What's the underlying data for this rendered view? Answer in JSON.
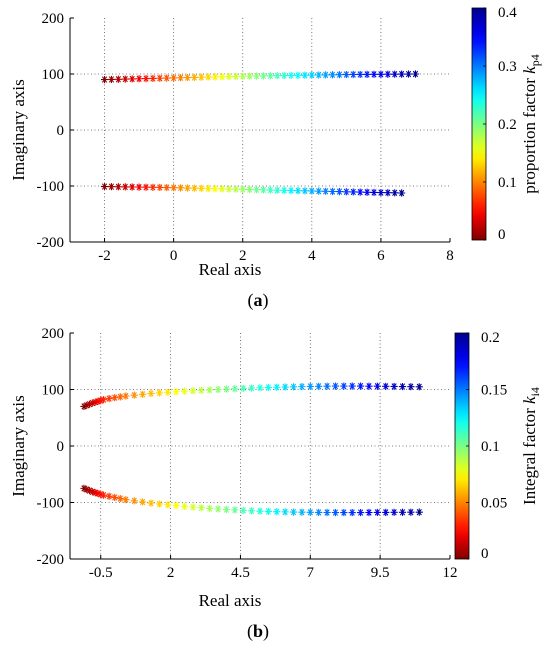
{
  "chart_data": [
    {
      "type": "scatter",
      "panel_label": "(a)",
      "panel_letter": "a",
      "xlabel": "Real axis",
      "ylabel": "Imaginary axis",
      "xlim": [
        -3,
        8
      ],
      "ylim": [
        -200,
        200
      ],
      "xticks": [
        -2,
        0,
        2,
        4,
        6,
        8
      ],
      "yticks": [
        -200,
        -100,
        0,
        100,
        200
      ],
      "grid": "dotted",
      "marker": "*",
      "series": [
        {
          "values": {
            "x": [
              -2.0,
              -1.8,
              -1.6,
              -1.4,
              -1.2,
              -1.0,
              -0.8,
              -0.6,
              -0.4,
              -0.2,
              0.0,
              0.2,
              0.4,
              0.6,
              0.8,
              1.0,
              1.2,
              1.4,
              1.6,
              1.8,
              2.0,
              2.2,
              2.4,
              2.6,
              2.8,
              3.0,
              3.2,
              3.4,
              3.6,
              3.8,
              4.0,
              4.2,
              4.4,
              4.6,
              4.8,
              5.0,
              5.2,
              5.4,
              5.6,
              5.8,
              6.0,
              6.2,
              6.4,
              6.6,
              6.8,
              7.0
            ],
            "y": [
              90,
              90.3,
              90.6,
              90.9,
              91.2,
              91.5,
              91.8,
              92.1,
              92.4,
              92.7,
              93,
              93.3,
              93.6,
              93.9,
              94.2,
              94.5,
              94.8,
              95.1,
              95.4,
              95.7,
              96,
              96.2,
              96.4,
              96.6,
              96.8,
              97,
              97.2,
              97.4,
              97.6,
              97.8,
              98,
              98.2,
              98.4,
              98.6,
              98.8,
              99,
              99.1,
              99.2,
              99.3,
              99.4,
              99.5,
              99.6,
              99.7,
              99.8,
              99.9,
              100
            ]
          }
        },
        {
          "values": {
            "x": [
              -2.0,
              -1.8,
              -1.6,
              -1.4,
              -1.2,
              -1.0,
              -0.8,
              -0.6,
              -0.4,
              -0.2,
              0.0,
              0.2,
              0.4,
              0.6,
              0.8,
              1.0,
              1.2,
              1.4,
              1.6,
              1.8,
              2.0,
              2.2,
              2.4,
              2.6,
              2.8,
              3.0,
              3.2,
              3.4,
              3.6,
              3.8,
              4.0,
              4.2,
              4.4,
              4.6,
              4.8,
              5.0,
              5.2,
              5.4,
              5.6,
              5.8,
              6.0,
              6.2,
              6.4,
              6.6
            ],
            "y": [
              -101,
              -101.2,
              -101.4,
              -101.6,
              -101.8,
              -102,
              -102.2,
              -102.4,
              -102.6,
              -102.8,
              -103,
              -103.3,
              -103.6,
              -103.9,
              -104.2,
              -104.5,
              -104.8,
              -105.1,
              -105.4,
              -105.7,
              -106,
              -106.3,
              -106.6,
              -106.9,
              -107.2,
              -107.5,
              -107.8,
              -108,
              -108.3,
              -108.6,
              -108.9,
              -109.2,
              -109.5,
              -109.8,
              -110,
              -110.3,
              -110.6,
              -110.9,
              -111.2,
              -111.5,
              -111.8,
              -112,
              -112.2,
              -112.5
            ]
          }
        }
      ],
      "colorbar": {
        "label_prefix": "proportion factor",
        "symbol": "k",
        "subscript": "p4",
        "range": [
          0,
          0.4
        ],
        "ticks": [
          0,
          0.1,
          0.2,
          0.3,
          0.4
        ],
        "colormap": "jet"
      }
    },
    {
      "type": "scatter",
      "panel_label": "(b)",
      "panel_letter": "b",
      "xlabel": "Real axis",
      "ylabel": "Imaginary axis",
      "xlim": [
        -1.6,
        12
      ],
      "ylim": [
        -200,
        200
      ],
      "xticks": [
        -0.5,
        2,
        4.5,
        7,
        9.5,
        12
      ],
      "yticks": [
        -200,
        -100,
        0,
        100,
        200
      ],
      "grid": "dotted",
      "marker": "*",
      "series": [
        {
          "values": {
            "x": [
              -1.1,
              -1.0,
              -0.9,
              -0.8,
              -0.7,
              -0.6,
              -0.5,
              -0.4,
              -0.2,
              0.0,
              0.2,
              0.4,
              0.7,
              1.0,
              1.3,
              1.6,
              1.9,
              2.2,
              2.5,
              2.8,
              3.1,
              3.4,
              3.7,
              4.0,
              4.3,
              4.6,
              4.9,
              5.2,
              5.5,
              5.8,
              6.1,
              6.4,
              6.7,
              7.0,
              7.3,
              7.6,
              7.9,
              8.2,
              8.5,
              8.8,
              9.1,
              9.4,
              9.7,
              10.0,
              10.3,
              10.6,
              10.9
            ],
            "y": [
              70,
              72,
              74,
              76,
              77.5,
              79,
              80.5,
              82,
              84,
              85.5,
              87,
              88.5,
              90,
              91.5,
              93,
              94,
              95,
              96,
              97,
              97.8,
              98.5,
              99.3,
              100,
              100.7,
              101.3,
              102,
              102.5,
              103,
              103.5,
              104,
              104.4,
              104.8,
              105.1,
              105.4,
              105.6,
              105.8,
              106,
              106,
              106,
              106,
              105.9,
              105.8,
              105.6,
              105.4,
              105.2,
              105,
              104.8
            ]
          }
        },
        {
          "values": {
            "x": [
              -1.1,
              -1.0,
              -0.9,
              -0.8,
              -0.7,
              -0.6,
              -0.5,
              -0.4,
              -0.2,
              0.0,
              0.2,
              0.4,
              0.7,
              1.0,
              1.3,
              1.6,
              1.9,
              2.2,
              2.5,
              2.8,
              3.1,
              3.4,
              3.7,
              4.0,
              4.3,
              4.6,
              4.9,
              5.2,
              5.5,
              5.8,
              6.1,
              6.4,
              6.7,
              7.0,
              7.3,
              7.6,
              7.9,
              8.2,
              8.5,
              8.8,
              9.1,
              9.4,
              9.7,
              10.0,
              10.3,
              10.6,
              10.9
            ],
            "y": [
              -75,
              -77,
              -79,
              -81,
              -82.5,
              -84,
              -85.5,
              -87,
              -89,
              -91,
              -93,
              -95,
              -97,
              -99,
              -101,
              -102.5,
              -104,
              -105.5,
              -107,
              -108.2,
              -109.4,
              -110.5,
              -111.5,
              -112.4,
              -113.2,
              -114,
              -114.7,
              -115.3,
              -115.8,
              -116.2,
              -116.6,
              -117,
              -117.2,
              -117.4,
              -117.6,
              -117.7,
              -117.8,
              -117.8,
              -117.8,
              -117.8,
              -117.7,
              -117.6,
              -117.5,
              -117.4,
              -117.3,
              -117.2,
              -117.1
            ]
          }
        }
      ],
      "colorbar": {
        "label_prefix": "Integral factor",
        "symbol": "k",
        "subscript": "i4",
        "range": [
          0,
          0.2
        ],
        "ticks": [
          0,
          0.05,
          0.1,
          0.15,
          0.2
        ],
        "colormap": "jet"
      }
    }
  ]
}
